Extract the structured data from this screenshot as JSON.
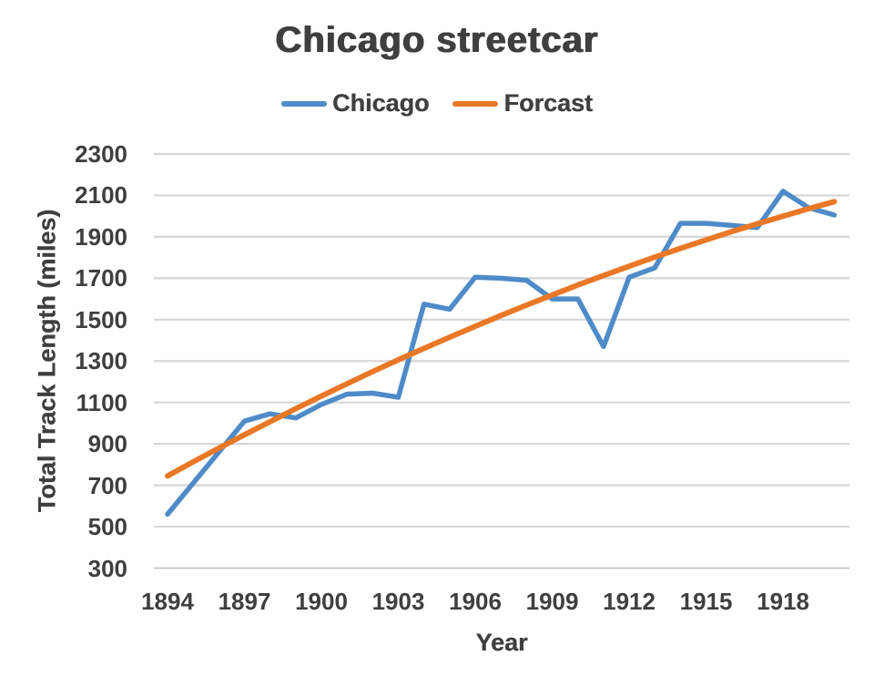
{
  "chart_data": {
    "type": "line",
    "title": "Chicago streetcar",
    "xlabel": "Year",
    "ylabel": "Total Track Length (miles)",
    "legend_position": "top-center",
    "grid": true,
    "x": [
      1894,
      1895,
      1896,
      1897,
      1898,
      1899,
      1900,
      1901,
      1902,
      1903,
      1904,
      1905,
      1906,
      1907,
      1908,
      1909,
      1910,
      1911,
      1912,
      1913,
      1914,
      1915,
      1916,
      1917,
      1918,
      1919,
      1920
    ],
    "series": [
      {
        "name": "Chicago",
        "color": "#4E8BC8",
        "values": [
          560,
          710,
          860,
          1010,
          1045,
          1025,
          1090,
          1140,
          1145,
          1125,
          1575,
          1550,
          1705,
          1700,
          1690,
          1600,
          1600,
          1370,
          1705,
          1750,
          1965,
          1965,
          1955,
          1945,
          2120,
          2040,
          2005
        ]
      },
      {
        "name": "Forcast",
        "color": "#E97826",
        "values": [
          745,
          813,
          879,
          944,
          1007,
          1070,
          1131,
          1190,
          1249,
          1306,
          1361,
          1415,
          1468,
          1520,
          1570,
          1619,
          1667,
          1713,
          1758,
          1802,
          1844,
          1885,
          1925,
          1963,
          2000,
          2036,
          2070
        ]
      }
    ],
    "y_ticks": [
      300,
      500,
      700,
      900,
      1100,
      1300,
      1500,
      1700,
      1900,
      2100,
      2300
    ],
    "x_ticks": [
      1894,
      1897,
      1900,
      1903,
      1906,
      1909,
      1912,
      1915,
      1918
    ],
    "ylim": [
      300,
      2300
    ],
    "xlim": [
      1894,
      1920
    ]
  },
  "style": {
    "gridline_color": "#d6d6d6",
    "baseline_color": "#bdbdbd",
    "text_color": "#3f3f3f",
    "background": "#ffffff"
  }
}
